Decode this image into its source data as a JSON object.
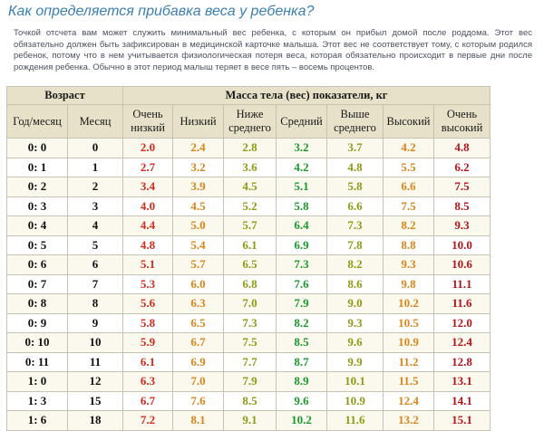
{
  "article": {
    "title": "Как определяется прибавка веса у ребенка?",
    "intro": "Точкой отсчета вам может служить минимальный вес ребенка, с которым он прибыл домой после роддома. Этот вес обязательно должен быть зафиксирован в медицинской карточке малыша. Этот вес не соответствует тому, с которым родился ребенок, потому что в нем учитывается физиологическая потеря веса, которая обязательно происходит в первые дни после рождения ребенка. Обычно в этот период малыш теряет в весе пять – восемь процентов."
  },
  "table": {
    "age_group_header": "Возраст",
    "mass_group_header": "Масса тела (вес) показатели, кг",
    "columns": [
      "Год/месяц",
      "Месяц",
      "Очень низкий",
      "Низкий",
      "Ниже среднего",
      "Средний",
      "Выше среднего",
      "Высокий",
      "Очень высокий"
    ],
    "column_colors": [
      "#d42b1e",
      "#d8861c",
      "#8f9a16",
      "#1a9a2c",
      "#8f9a16",
      "#d8861c",
      "#b4141c"
    ],
    "rows": [
      [
        "0: 0",
        "0",
        "2.0",
        "2.4",
        "2.8",
        "3.2",
        "3.7",
        "4.2",
        "4.8"
      ],
      [
        "0: 1",
        "1",
        "2.7",
        "3.2",
        "3.6",
        "4.2",
        "4.8",
        "5.5",
        "6.2"
      ],
      [
        "0: 2",
        "2",
        "3.4",
        "3.9",
        "4.5",
        "5.1",
        "5.8",
        "6.6",
        "7.5"
      ],
      [
        "0: 3",
        "3",
        "4.0",
        "4.5",
        "5.2",
        "5.8",
        "6.6",
        "7.5",
        "8.5"
      ],
      [
        "0: 4",
        "4",
        "4.4",
        "5.0",
        "5.7",
        "6.4",
        "7.3",
        "8.2",
        "9.3"
      ],
      [
        "0: 5",
        "5",
        "4.8",
        "5.4",
        "6.1",
        "6.9",
        "7.8",
        "8.8",
        "10.0"
      ],
      [
        "0: 6",
        "6",
        "5.1",
        "5.7",
        "6.5",
        "7.3",
        "8.2",
        "9.3",
        "10.6"
      ],
      [
        "0: 7",
        "7",
        "5.3",
        "6.0",
        "6.8",
        "7.6",
        "8.6",
        "9.8",
        "11.1"
      ],
      [
        "0: 8",
        "8",
        "5.6",
        "6.3",
        "7.0",
        "7.9",
        "9.0",
        "10.2",
        "11.6"
      ],
      [
        "0: 9",
        "9",
        "5.8",
        "6.5",
        "7.3",
        "8.2",
        "9.3",
        "10.5",
        "12.0"
      ],
      [
        "0: 10",
        "10",
        "5.9",
        "6.7",
        "7.5",
        "8.5",
        "9.6",
        "10.9",
        "12.4"
      ],
      [
        "0: 11",
        "11",
        "6.1",
        "6.9",
        "7.7",
        "8.7",
        "9.9",
        "11.2",
        "12.8"
      ],
      [
        "1: 0",
        "12",
        "6.3",
        "7.0",
        "7.9",
        "8.9",
        "10.1",
        "11.5",
        "13.1"
      ],
      [
        "1: 3",
        "15",
        "6.7",
        "7.6",
        "8.5",
        "9.6",
        "10.9",
        "12.4",
        "14.1"
      ],
      [
        "1: 6",
        "18",
        "7.2",
        "8.1",
        "9.1",
        "10.2",
        "11.6",
        "13.2",
        "15.1"
      ]
    ]
  }
}
